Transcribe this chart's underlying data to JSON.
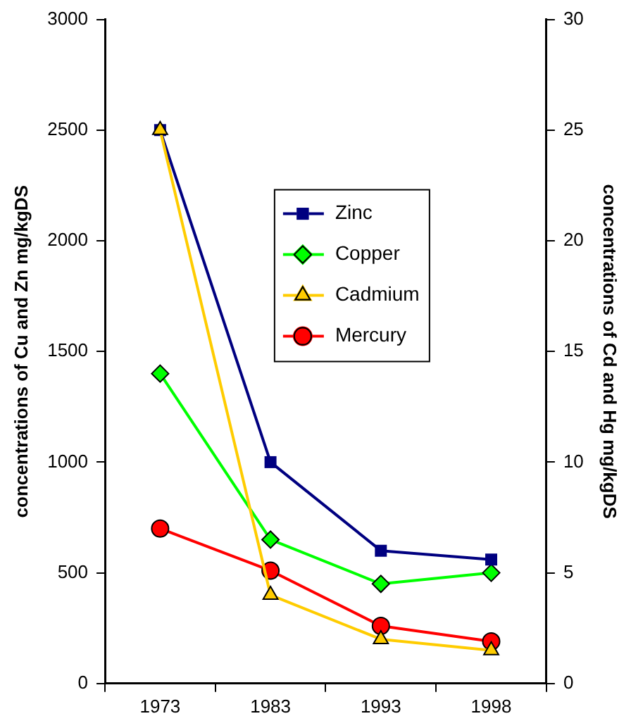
{
  "chart_data": {
    "type": "line",
    "categories": [
      "1973",
      "1983",
      "1993",
      "1998"
    ],
    "ylabel": "concentrations of Cu and Zn mg/kgDS",
    "y2label": "concentrations of Cd and Hg mg/kgDS",
    "ylim": [
      0,
      3000
    ],
    "yticks": [
      0,
      500,
      1000,
      1500,
      2000,
      2500,
      3000
    ],
    "y2lim": [
      0,
      30
    ],
    "y2ticks": [
      0,
      5,
      10,
      15,
      20,
      25,
      30
    ],
    "grid": false,
    "legend": "top right",
    "line_style": "solid",
    "series": [
      {
        "name": "Zinc",
        "color": "#000080",
        "marker": "square",
        "values": [
          2500,
          1000,
          600,
          560
        ]
      },
      {
        "name": "Copper",
        "color": "#00ff00",
        "marker": "diamond",
        "values": [
          1400,
          650,
          450,
          500
        ]
      },
      {
        "name": "Cadmium",
        "color": "#ffcc00",
        "marker": "triangle",
        "axis": "y2",
        "values": [
          25,
          4,
          2,
          1.5
        ]
      },
      {
        "name": "Mercury",
        "color": "#ff0000",
        "marker": "circle",
        "axis": "y2",
        "values": [
          7,
          5.1,
          2.6,
          1.9
        ]
      }
    ]
  }
}
